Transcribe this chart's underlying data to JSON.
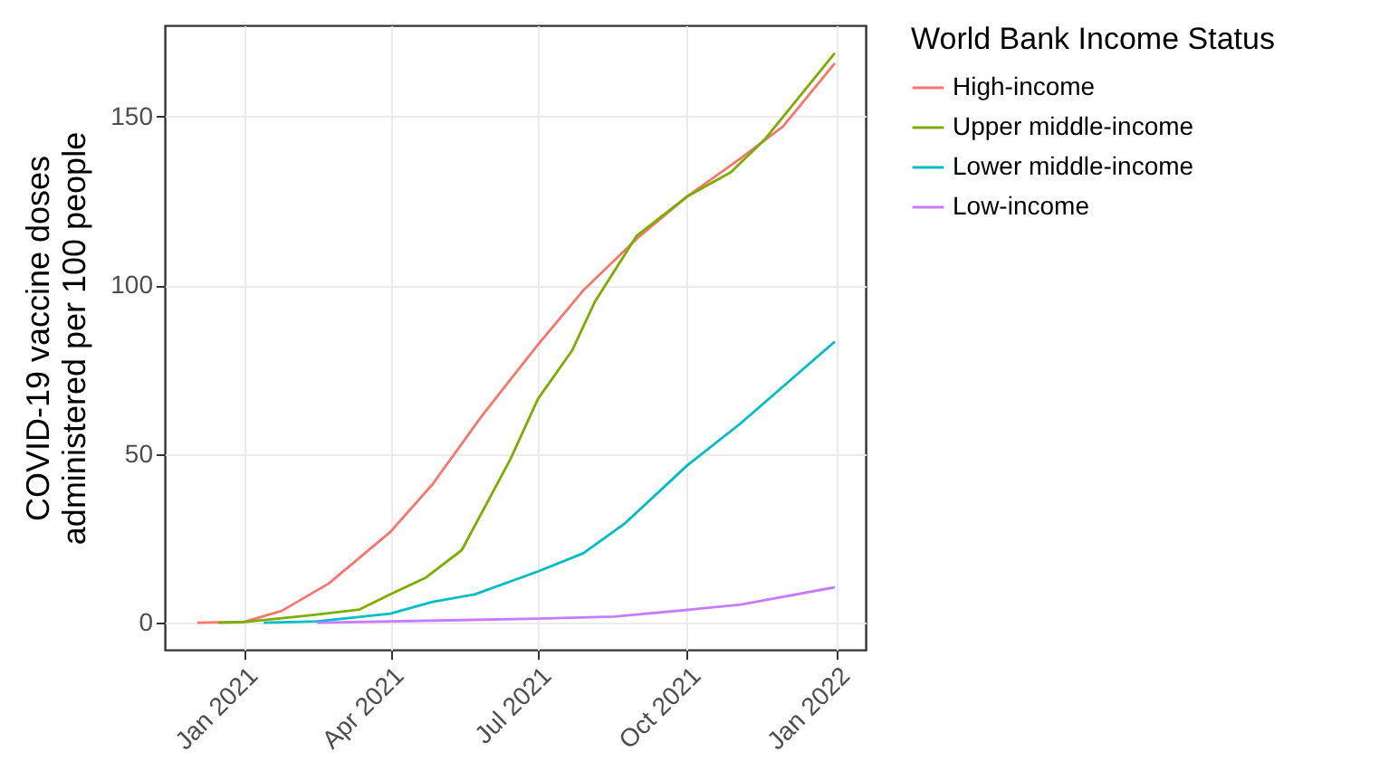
{
  "chart_data": {
    "type": "line",
    "ylabel": "COVID-19 vaccine doses\nadministered per 100 people",
    "legend_title": "World Bank Income Status",
    "legend": "right",
    "grid": true,
    "line_style": "solid",
    "xlim": [
      "2020-11-13",
      "2022-01-19"
    ],
    "ylim": [
      -8,
      177
    ],
    "xticks": [
      {
        "value": "2021-01-01",
        "label": "Jan 2021"
      },
      {
        "value": "2021-04-01",
        "label": "Apr 2021"
      },
      {
        "value": "2021-07-01",
        "label": "Jul 2021"
      },
      {
        "value": "2021-10-01",
        "label": "Oct 2021"
      },
      {
        "value": "2022-01-01",
        "label": "Jan 2022"
      }
    ],
    "yticks": [
      0,
      50,
      100,
      150
    ],
    "series": [
      {
        "name": "High-income",
        "color": "#f8766d",
        "x": [
          "2020-12-03",
          "2021-01-01",
          "2021-01-24",
          "2021-02-22",
          "2021-04-01",
          "2021-04-27",
          "2021-05-27",
          "2021-07-01",
          "2021-07-29",
          "2021-08-31",
          "2021-10-01",
          "2021-11-03",
          "2021-11-29",
          "2021-12-31"
        ],
        "values": [
          0,
          0.3,
          3.5,
          11.6,
          26.9,
          41,
          61,
          82.4,
          98.5,
          113.8,
          126.3,
          137.6,
          147,
          165.8
        ]
      },
      {
        "name": "Upper middle-income",
        "color": "#7cae00",
        "x": [
          "2020-12-16",
          "2021-01-01",
          "2021-02-11",
          "2021-03-13",
          "2021-04-01",
          "2021-04-23",
          "2021-05-15",
          "2021-06-14",
          "2021-07-01",
          "2021-07-22",
          "2021-08-05",
          "2021-08-31",
          "2021-10-01",
          "2021-10-28",
          "2021-11-18",
          "2021-12-31"
        ],
        "values": [
          0,
          0.2,
          2.2,
          3.9,
          8.4,
          13.4,
          21.5,
          48.4,
          66.3,
          80.6,
          95,
          114.7,
          126.3,
          133.5,
          143.3,
          168.8
        ]
      },
      {
        "name": "Lower middle-income",
        "color": "#00bfc4",
        "x": [
          "2021-01-13",
          "2021-02-15",
          "2021-04-01",
          "2021-04-27",
          "2021-05-23",
          "2021-07-01",
          "2021-07-29",
          "2021-08-24",
          "2021-10-01",
          "2021-11-03",
          "2021-12-31"
        ],
        "values": [
          0,
          0.4,
          2.7,
          6.2,
          8.4,
          15.2,
          20.6,
          29.6,
          46.6,
          59.1,
          83.3
        ]
      },
      {
        "name": "Low-income",
        "color": "#c77cff",
        "x": [
          "2021-02-15",
          "2021-07-01",
          "2021-08-17",
          "2021-10-01",
          "2021-11-03",
          "2021-12-31"
        ],
        "values": [
          0,
          1.2,
          1.8,
          3.8,
          5.4,
          10.5
        ]
      }
    ]
  }
}
